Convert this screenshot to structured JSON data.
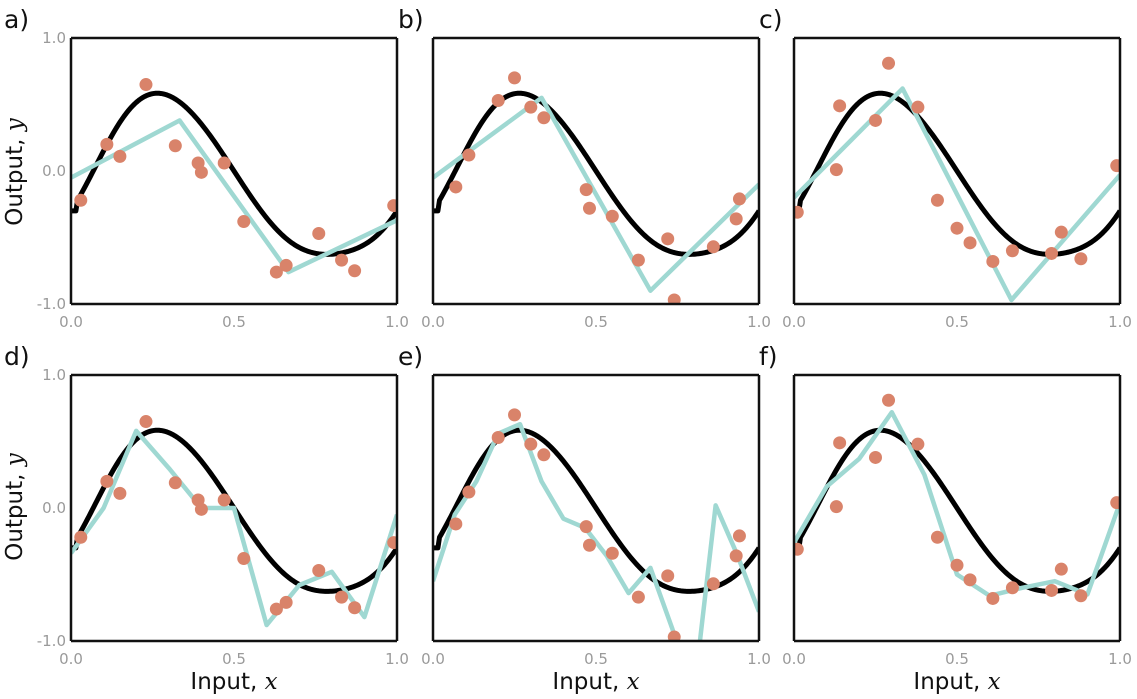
{
  "figure": {
    "ylabel": "Output,",
    "ylabel_var": "y",
    "xlabel": "Input,",
    "xlabel_var": "x",
    "colors": {
      "true_function": "#000000",
      "model": "#9fd8d2",
      "points": "#d9836a",
      "frame": "#111111"
    }
  },
  "chart_data": [
    {
      "panel": "a)",
      "type": "line",
      "xlim": [
        0,
        1
      ],
      "ylim": [
        -1,
        1
      ],
      "xticks": [
        "0.0",
        "0.5",
        "1.0"
      ],
      "yticks": [
        "1.0",
        "0.0",
        "-1.0"
      ],
      "points": [
        [
          0.03,
          -0.22
        ],
        [
          0.11,
          0.2
        ],
        [
          0.15,
          0.11
        ],
        [
          0.23,
          0.65
        ],
        [
          0.32,
          0.19
        ],
        [
          0.39,
          0.06
        ],
        [
          0.4,
          -0.01
        ],
        [
          0.47,
          0.06
        ],
        [
          0.53,
          -0.38
        ],
        [
          0.63,
          -0.76
        ],
        [
          0.66,
          -0.71
        ],
        [
          0.76,
          -0.47
        ],
        [
          0.83,
          -0.67
        ],
        [
          0.87,
          -0.75
        ],
        [
          0.99,
          -0.26
        ]
      ],
      "model": [
        [
          0,
          -0.05
        ],
        [
          0.333,
          0.38
        ],
        [
          0.667,
          -0.76
        ],
        [
          1,
          -0.37
        ]
      ]
    },
    {
      "panel": "b)",
      "type": "line",
      "xlim": [
        0,
        1
      ],
      "ylim": [
        -1,
        1
      ],
      "xticks": [
        "0.0",
        "0.5",
        "1.0"
      ],
      "yticks": [],
      "points": [
        [
          0.07,
          -0.12
        ],
        [
          0.11,
          0.12
        ],
        [
          0.2,
          0.53
        ],
        [
          0.25,
          0.7
        ],
        [
          0.3,
          0.48
        ],
        [
          0.34,
          0.4
        ],
        [
          0.47,
          -0.14
        ],
        [
          0.48,
          -0.28
        ],
        [
          0.55,
          -0.34
        ],
        [
          0.63,
          -0.67
        ],
        [
          0.72,
          -0.51
        ],
        [
          0.74,
          -0.97
        ],
        [
          0.86,
          -0.57
        ],
        [
          0.93,
          -0.36
        ],
        [
          0.94,
          -0.21
        ]
      ],
      "model": [
        [
          0,
          -0.05
        ],
        [
          0.333,
          0.55
        ],
        [
          0.667,
          -0.9
        ],
        [
          1,
          -0.1
        ]
      ]
    },
    {
      "panel": "c)",
      "type": "line",
      "xlim": [
        0,
        1
      ],
      "ylim": [
        -1,
        1
      ],
      "xticks": [
        "0.0",
        "0.5",
        "1.0"
      ],
      "yticks": [],
      "points": [
        [
          0.01,
          -0.31
        ],
        [
          0.13,
          0.01
        ],
        [
          0.14,
          0.49
        ],
        [
          0.25,
          0.38
        ],
        [
          0.29,
          0.81
        ],
        [
          0.38,
          0.48
        ],
        [
          0.44,
          -0.22
        ],
        [
          0.5,
          -0.43
        ],
        [
          0.54,
          -0.54
        ],
        [
          0.61,
          -0.68
        ],
        [
          0.67,
          -0.6
        ],
        [
          0.79,
          -0.62
        ],
        [
          0.82,
          -0.46
        ],
        [
          0.88,
          -0.66
        ],
        [
          0.99,
          0.04
        ]
      ],
      "model": [
        [
          0,
          -0.2
        ],
        [
          0.333,
          0.62
        ],
        [
          0.667,
          -0.97
        ],
        [
          1,
          -0.03
        ]
      ]
    },
    {
      "panel": "d)",
      "type": "line",
      "xlim": [
        0,
        1
      ],
      "ylim": [
        -1,
        1
      ],
      "xticks": [
        "0.0",
        "0.5",
        "1.0"
      ],
      "yticks": [
        "1.0",
        "0.0",
        "-1.0"
      ],
      "points": [
        [
          0.03,
          -0.22
        ],
        [
          0.11,
          0.2
        ],
        [
          0.15,
          0.11
        ],
        [
          0.23,
          0.65
        ],
        [
          0.32,
          0.19
        ],
        [
          0.39,
          0.06
        ],
        [
          0.4,
          -0.01
        ],
        [
          0.47,
          0.06
        ],
        [
          0.53,
          -0.38
        ],
        [
          0.63,
          -0.76
        ],
        [
          0.66,
          -0.71
        ],
        [
          0.76,
          -0.47
        ],
        [
          0.83,
          -0.67
        ],
        [
          0.87,
          -0.75
        ],
        [
          0.99,
          -0.26
        ]
      ],
      "model": [
        [
          0,
          -0.34
        ],
        [
          0.1,
          0.0
        ],
        [
          0.2,
          0.58
        ],
        [
          0.3,
          0.3
        ],
        [
          0.4,
          0.0
        ],
        [
          0.5,
          0.0
        ],
        [
          0.6,
          -0.88
        ],
        [
          0.7,
          -0.58
        ],
        [
          0.8,
          -0.48
        ],
        [
          0.9,
          -0.82
        ],
        [
          1,
          -0.05
        ]
      ]
    },
    {
      "panel": "e)",
      "type": "line",
      "xlim": [
        0,
        1
      ],
      "ylim": [
        -1,
        1
      ],
      "xticks": [
        "0.0",
        "0.5",
        "1.0"
      ],
      "yticks": [],
      "points": [
        [
          0.07,
          -0.12
        ],
        [
          0.11,
          0.12
        ],
        [
          0.2,
          0.53
        ],
        [
          0.25,
          0.7
        ],
        [
          0.3,
          0.48
        ],
        [
          0.34,
          0.4
        ],
        [
          0.47,
          -0.14
        ],
        [
          0.48,
          -0.28
        ],
        [
          0.55,
          -0.34
        ],
        [
          0.63,
          -0.67
        ],
        [
          0.72,
          -0.51
        ],
        [
          0.74,
          -0.97
        ],
        [
          0.86,
          -0.57
        ],
        [
          0.93,
          -0.36
        ],
        [
          0.94,
          -0.21
        ]
      ],
      "model": [
        [
          0,
          -0.55
        ],
        [
          0.0667,
          -0.05
        ],
        [
          0.133,
          0.2
        ],
        [
          0.2,
          0.56
        ],
        [
          0.267,
          0.63
        ],
        [
          0.333,
          0.2
        ],
        [
          0.4,
          -0.08
        ],
        [
          0.467,
          -0.15
        ],
        [
          0.533,
          -0.36
        ],
        [
          0.6,
          -0.64
        ],
        [
          0.667,
          -0.45
        ],
        [
          0.733,
          -0.9
        ],
        [
          0.8,
          -1.4
        ],
        [
          0.867,
          0.02
        ],
        [
          0.933,
          -0.35
        ],
        [
          1,
          -0.78
        ]
      ]
    },
    {
      "panel": "f)",
      "type": "line",
      "xlim": [
        0,
        1
      ],
      "ylim": [
        -1,
        1
      ],
      "xticks": [
        "0.0",
        "0.5",
        "1.0"
      ],
      "yticks": [],
      "points": [
        [
          0.01,
          -0.31
        ],
        [
          0.13,
          0.01
        ],
        [
          0.14,
          0.49
        ],
        [
          0.25,
          0.38
        ],
        [
          0.29,
          0.81
        ],
        [
          0.38,
          0.48
        ],
        [
          0.44,
          -0.22
        ],
        [
          0.5,
          -0.43
        ],
        [
          0.54,
          -0.54
        ],
        [
          0.61,
          -0.68
        ],
        [
          0.67,
          -0.6
        ],
        [
          0.79,
          -0.62
        ],
        [
          0.82,
          -0.46
        ],
        [
          0.88,
          -0.66
        ],
        [
          0.99,
          0.04
        ]
      ],
      "model": [
        [
          0,
          -0.26
        ],
        [
          0.1,
          0.16
        ],
        [
          0.2,
          0.37
        ],
        [
          0.3,
          0.72
        ],
        [
          0.4,
          0.25
        ],
        [
          0.5,
          -0.5
        ],
        [
          0.6,
          -0.66
        ],
        [
          0.7,
          -0.6
        ],
        [
          0.8,
          -0.55
        ],
        [
          0.9,
          -0.65
        ],
        [
          1,
          0.04
        ]
      ]
    }
  ]
}
